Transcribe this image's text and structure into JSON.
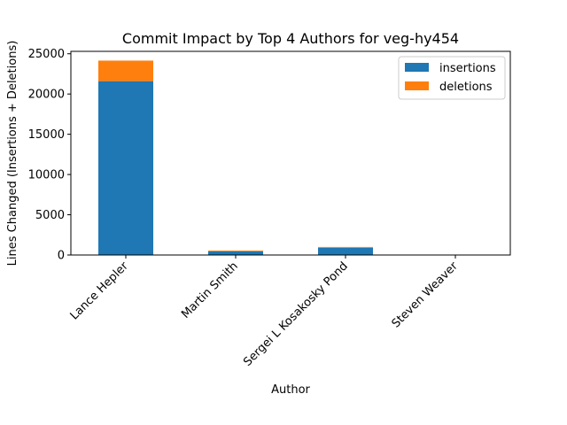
{
  "chart_data": {
    "type": "bar",
    "stacked": true,
    "title": "Commit Impact by Top 4 Authors for veg-hy454",
    "xlabel": "Author",
    "ylabel": "Lines Changed (Insertions + Deletions)",
    "categories": [
      "Lance Hepler",
      "Martin Smith",
      "Sergei L Kosakosky Pond",
      "Steven Weaver"
    ],
    "series": [
      {
        "name": "insertions",
        "color": "#1f77b4",
        "values": [
          21600,
          450,
          900,
          0
        ]
      },
      {
        "name": "deletions",
        "color": "#ff7f0e",
        "values": [
          2550,
          100,
          100,
          0
        ]
      }
    ],
    "ylim": [
      0,
      25300
    ],
    "yticks": [
      0,
      5000,
      10000,
      15000,
      20000,
      25000
    ],
    "grid": false,
    "legend_position": "top-right"
  }
}
